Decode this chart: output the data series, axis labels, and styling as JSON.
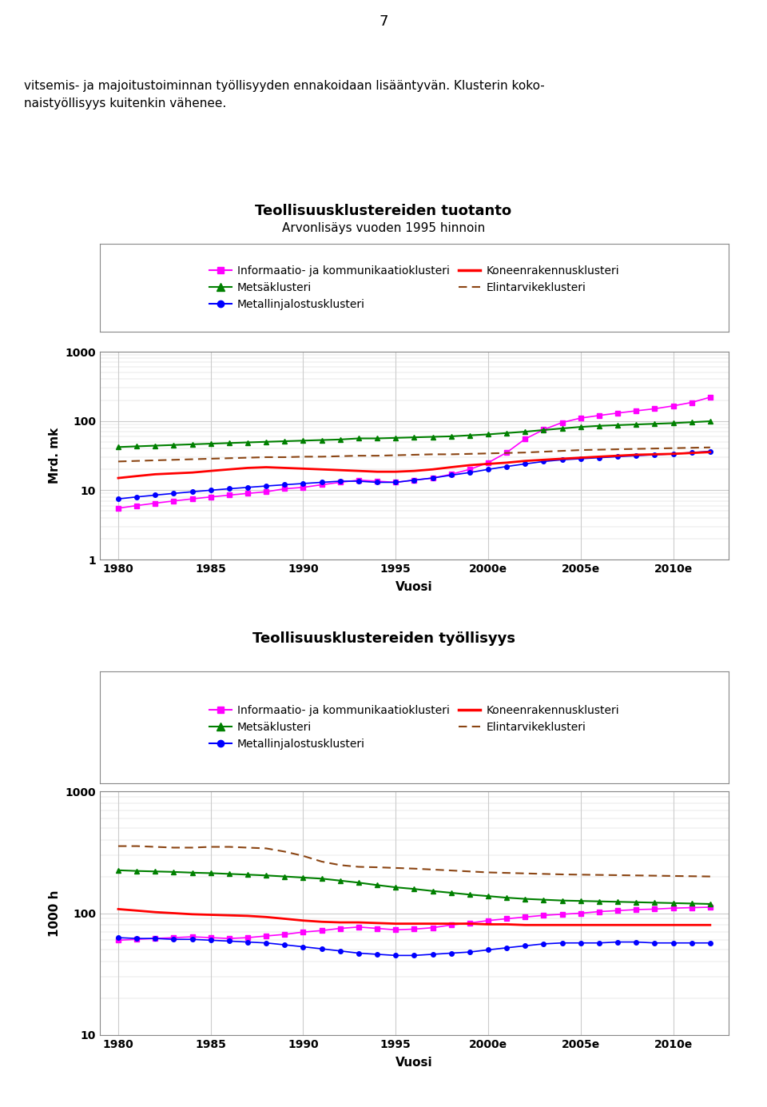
{
  "page_number": "7",
  "header_line1": "vitsemis- ja majoitustoiminnan työllisyyden ennakoidaan lisääntyvän. Klusterin koko-",
  "header_line2": "naistyöllisyys kuitenkin vähenee.",
  "chart1_title": "Teollisuusklustereiden tuotanto",
  "chart1_subtitle": "Arvonlisäys vuoden 1995 hinnoin",
  "chart1_ylabel": "Mrd. mk",
  "chart1_xlabel": "Vuosi",
  "chart1_ylim": [
    1,
    1000
  ],
  "chart2_title": "Teollisuusklustereiden työllisyys",
  "chart2_ylabel": "1000 h",
  "chart2_xlabel": "Vuosi",
  "chart2_ylim": [
    10,
    1000
  ],
  "x_labels": [
    "1980",
    "1985",
    "1990",
    "1995",
    "2000e",
    "2005e",
    "2010e"
  ],
  "x_values": [
    1980,
    1985,
    1990,
    1995,
    2000,
    2005,
    2010
  ],
  "x_range": [
    1979,
    2013
  ],
  "legend_col1": [
    "Informaatio- ja kommunikaatioklusteri",
    "Metallinjalostusklusteri",
    "Elintarvikeklusteri"
  ],
  "legend_col2": [
    "Metsäklusteri",
    "Koneenrakennusklusteri"
  ],
  "chart1_data": {
    "informaatio": [
      5.5,
      6.0,
      6.5,
      7.0,
      7.5,
      8.0,
      8.5,
      9.0,
      9.5,
      10.5,
      11.0,
      12.0,
      13.0,
      14.0,
      13.5,
      13.0,
      14.0,
      15.0,
      17.0,
      20.0,
      25.0,
      35.0,
      55.0,
      75.0,
      95.0,
      110.0,
      120.0,
      130.0,
      140.0,
      150.0,
      165.0,
      185.0,
      220.0
    ],
    "metsa": [
      42.0,
      43.0,
      44.0,
      45.0,
      46.0,
      47.0,
      48.0,
      49.0,
      50.0,
      51.0,
      52.0,
      53.0,
      54.0,
      56.0,
      56.0,
      57.0,
      58.0,
      59.0,
      60.0,
      62.0,
      64.0,
      67.0,
      70.0,
      74.0,
      78.0,
      82.0,
      85.0,
      87.0,
      89.0,
      91.0,
      93.0,
      96.0,
      99.0
    ],
    "metalli": [
      7.5,
      8.0,
      8.5,
      9.0,
      9.5,
      10.0,
      10.5,
      11.0,
      11.5,
      12.0,
      12.5,
      13.0,
      13.5,
      13.5,
      13.0,
      13.0,
      14.0,
      15.0,
      16.5,
      18.0,
      20.0,
      22.0,
      24.0,
      26.0,
      27.5,
      28.5,
      29.5,
      30.5,
      31.5,
      32.5,
      33.5,
      35.0,
      36.5
    ],
    "koneenrakennus": [
      15.0,
      16.0,
      17.0,
      17.5,
      18.0,
      19.0,
      20.0,
      21.0,
      21.5,
      21.0,
      20.5,
      20.0,
      19.5,
      19.0,
      18.5,
      18.5,
      19.0,
      20.0,
      21.5,
      23.0,
      24.0,
      25.0,
      26.5,
      27.5,
      28.5,
      29.5,
      30.5,
      31.5,
      32.5,
      33.0,
      33.5,
      34.5,
      35.5
    ],
    "elintarvike": [
      26.0,
      26.5,
      27.0,
      27.5,
      28.0,
      28.5,
      29.0,
      29.5,
      30.0,
      30.0,
      30.5,
      30.5,
      31.0,
      31.5,
      31.5,
      32.0,
      32.5,
      33.0,
      33.0,
      33.5,
      34.0,
      34.5,
      35.0,
      36.0,
      37.0,
      38.0,
      38.5,
      39.0,
      39.5,
      40.0,
      40.5,
      41.0,
      41.5
    ]
  },
  "chart2_data": {
    "informaatio": [
      60,
      61,
      62,
      63,
      64,
      63,
      62,
      63,
      65,
      67,
      70,
      72,
      75,
      77,
      75,
      73,
      74,
      76,
      80,
      83,
      87,
      90,
      93,
      96,
      98,
      100,
      103,
      105,
      107,
      108,
      110,
      111,
      112
    ],
    "metsa": [
      225,
      222,
      220,
      218,
      215,
      213,
      210,
      207,
      204,
      200,
      196,
      192,
      185,
      178,
      170,
      163,
      158,
      152,
      147,
      142,
      138,
      134,
      131,
      129,
      127,
      126,
      125,
      124,
      123,
      122,
      121,
      120,
      119
    ],
    "metalli": [
      63,
      62,
      62,
      61,
      61,
      60,
      59,
      58,
      57,
      55,
      53,
      51,
      49,
      47,
      46,
      45,
      45,
      46,
      47,
      48,
      50,
      52,
      54,
      56,
      57,
      57,
      57,
      58,
      58,
      57,
      57,
      57,
      57
    ],
    "koneenrakennus": [
      108,
      105,
      102,
      100,
      98,
      97,
      96,
      95,
      93,
      90,
      87,
      85,
      84,
      84,
      83,
      82,
      82,
      82,
      82,
      82,
      81,
      81,
      80,
      80,
      80,
      80,
      80,
      80,
      80,
      80,
      80,
      80,
      80
    ],
    "elintarvike": [
      355,
      355,
      350,
      345,
      345,
      350,
      350,
      345,
      340,
      320,
      295,
      265,
      248,
      240,
      238,
      235,
      232,
      228,
      224,
      220,
      216,
      214,
      212,
      210,
      208,
      207,
      206,
      205,
      204,
      203,
      202,
      201,
      200
    ]
  },
  "colors": {
    "informaatio": "#FF00FF",
    "metsa": "#008000",
    "metalli": "#0000FF",
    "koneenrakennus": "#FF0000",
    "elintarvike": "#8B4513"
  },
  "bg": "#FFFFFF",
  "grid_color": "#CCCCCC"
}
